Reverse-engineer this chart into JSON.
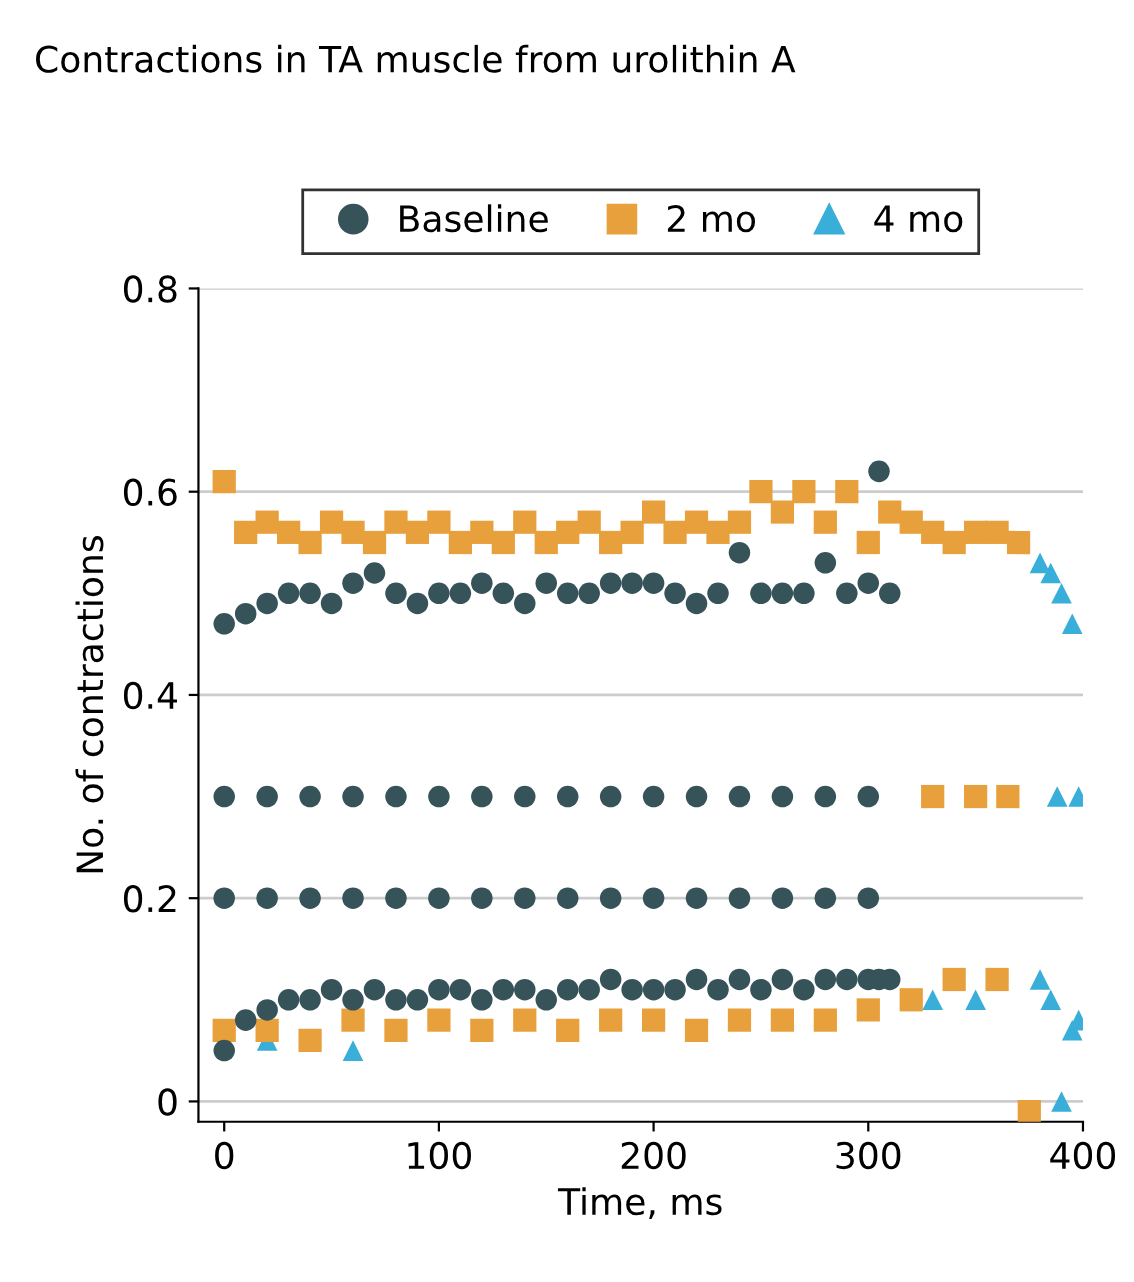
{
  "chart_data": {
    "type": "scatter",
    "title": "Contractions in TA muscle from urolithin A",
    "xlabel": "Time, ms",
    "ylabel": "No. of contractions",
    "xlim": [
      -12,
      400
    ],
    "xticks": [
      0,
      100,
      200,
      300,
      400
    ],
    "ylim": [
      -0.02,
      0.8
    ],
    "yticks": [
      0,
      0.2,
      0.4,
      0.6,
      0.8
    ],
    "grid": "y",
    "legend": "top",
    "series": [
      {
        "name": "Baseline",
        "color": "#37535a",
        "marker": "circle",
        "x": [
          0,
          10,
          20,
          30,
          40,
          50,
          60,
          70,
          80,
          90,
          100,
          110,
          120,
          130,
          140,
          150,
          160,
          170,
          180,
          190,
          200,
          210,
          220,
          230,
          240,
          250,
          260,
          270,
          280,
          290,
          300,
          305,
          310,
          0,
          10,
          20,
          30,
          40,
          50,
          60,
          70,
          80,
          90,
          100,
          110,
          120,
          130,
          140,
          150,
          160,
          170,
          180,
          190,
          200,
          210,
          220,
          230,
          240,
          250,
          260,
          270,
          280,
          290,
          300,
          305,
          310,
          0,
          20,
          40,
          60,
          80,
          100,
          120,
          140,
          160,
          180,
          200,
          220,
          240,
          260,
          280,
          300,
          0,
          20,
          40,
          60,
          80,
          100,
          120,
          140,
          160,
          180,
          200,
          220,
          240,
          260,
          280,
          300
        ],
        "values": [
          0.47,
          0.48,
          0.49,
          0.5,
          0.5,
          0.49,
          0.51,
          0.52,
          0.5,
          0.49,
          0.5,
          0.5,
          0.51,
          0.5,
          0.49,
          0.51,
          0.5,
          0.5,
          0.51,
          0.51,
          0.51,
          0.5,
          0.49,
          0.5,
          0.54,
          0.5,
          0.5,
          0.5,
          0.53,
          0.5,
          0.51,
          0.62,
          0.5,
          0.05,
          0.08,
          0.09,
          0.1,
          0.1,
          0.11,
          0.1,
          0.11,
          0.1,
          0.1,
          0.11,
          0.11,
          0.1,
          0.11,
          0.11,
          0.1,
          0.11,
          0.11,
          0.12,
          0.11,
          0.11,
          0.11,
          0.12,
          0.11,
          0.12,
          0.11,
          0.12,
          0.11,
          0.12,
          0.12,
          0.12,
          0.12,
          0.12,
          0.3,
          0.3,
          0.3,
          0.3,
          0.3,
          0.3,
          0.3,
          0.3,
          0.3,
          0.3,
          0.3,
          0.3,
          0.3,
          0.3,
          0.3,
          0.3,
          0.2,
          0.2,
          0.2,
          0.2,
          0.2,
          0.2,
          0.2,
          0.2,
          0.2,
          0.2,
          0.2,
          0.2,
          0.2,
          0.2,
          0.2,
          0.2
        ]
      },
      {
        "name": "2 mo",
        "color": "#e8a03d",
        "marker": "square",
        "x": [
          0,
          10,
          20,
          30,
          40,
          50,
          60,
          70,
          80,
          90,
          100,
          110,
          120,
          130,
          140,
          150,
          160,
          170,
          180,
          190,
          200,
          210,
          220,
          230,
          240,
          250,
          260,
          270,
          280,
          290,
          300,
          310,
          320,
          330,
          340,
          350,
          360,
          370,
          0,
          20,
          40,
          60,
          80,
          100,
          120,
          140,
          160,
          180,
          200,
          220,
          240,
          260,
          280,
          300,
          320,
          340,
          360,
          375,
          330,
          350,
          365
        ],
        "values": [
          0.61,
          0.56,
          0.57,
          0.56,
          0.55,
          0.57,
          0.56,
          0.55,
          0.57,
          0.56,
          0.57,
          0.55,
          0.56,
          0.55,
          0.57,
          0.55,
          0.56,
          0.57,
          0.55,
          0.56,
          0.58,
          0.56,
          0.57,
          0.56,
          0.57,
          0.6,
          0.58,
          0.6,
          0.57,
          0.6,
          0.55,
          0.58,
          0.57,
          0.56,
          0.55,
          0.56,
          0.56,
          0.55,
          0.07,
          0.07,
          0.06,
          0.08,
          0.07,
          0.08,
          0.07,
          0.08,
          0.07,
          0.08,
          0.08,
          0.07,
          0.08,
          0.08,
          0.08,
          0.09,
          0.1,
          0.12,
          0.12,
          -0.01,
          0.3,
          0.3,
          0.3
        ]
      },
      {
        "name": "4 mo",
        "color": "#38aed8",
        "marker": "triangle",
        "x": [
          20,
          60,
          330,
          350,
          380,
          385,
          390,
          395,
          398,
          380,
          385,
          390,
          395,
          398,
          388
        ],
        "values": [
          0.06,
          0.05,
          0.1,
          0.1,
          0.53,
          0.52,
          0.5,
          0.47,
          0.3,
          0.12,
          0.1,
          0.0,
          0.07,
          0.08,
          0.3
        ]
      }
    ]
  }
}
